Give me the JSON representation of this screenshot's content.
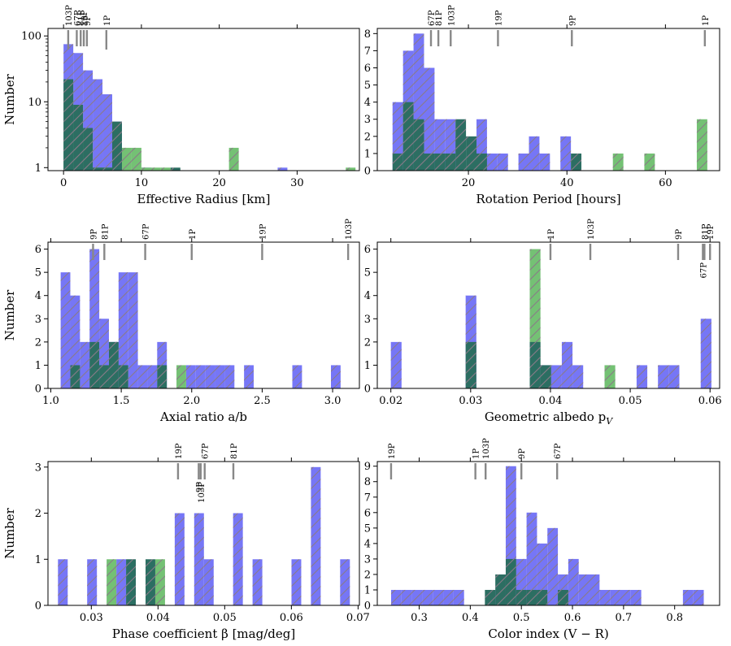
{
  "colors": {
    "blue": "#7676f6",
    "green": "#74c174",
    "dark": "#2c6e62",
    "hatch": "#8a7a88",
    "marker": "#888888"
  },
  "chart_data": [
    {
      "type": "bar",
      "title": "",
      "xlabel": "Effective Radius [km]",
      "ylabel": "Number",
      "yscale": "log",
      "xlim": [
        -2,
        38
      ],
      "ylim": [
        0.9,
        130
      ],
      "xticks": [
        {
          "v": 0,
          "label": "0"
        },
        {
          "v": 10,
          "label": "10"
        },
        {
          "v": 20,
          "label": "20"
        },
        {
          "v": 30,
          "label": "30"
        }
      ],
      "yticks": [
        {
          "v": 1,
          "label": "1"
        },
        {
          "v": 10,
          "label": "10"
        },
        {
          "v": 100,
          "label": "100"
        }
      ],
      "bins_start": 0,
      "bin_width": 1.25,
      "series": [
        {
          "name": "blue",
          "values": [
            75,
            55,
            30,
            22,
            13,
            5,
            0,
            0,
            1,
            0,
            0,
            0,
            0,
            0,
            0,
            0,
            0,
            0,
            0,
            0,
            0,
            0,
            1,
            0,
            0,
            0,
            0,
            0,
            0,
            0
          ]
        },
        {
          "name": "green",
          "values": [
            15,
            5,
            4,
            1,
            1,
            2,
            2,
            2,
            1,
            1,
            1,
            0,
            0,
            0,
            0,
            0,
            0,
            2,
            0,
            0,
            0,
            0,
            0,
            0,
            0,
            0,
            0,
            0,
            0,
            1
          ]
        },
        {
          "name": "overlap",
          "values": [
            22,
            9,
            4,
            1,
            1,
            5,
            0,
            0,
            0,
            0,
            0,
            1,
            0,
            0,
            0,
            0,
            0,
            0,
            0,
            0,
            0,
            0,
            0,
            0,
            0,
            0,
            0,
            0,
            0,
            0
          ]
        }
      ],
      "markers": [
        {
          "label": "103P",
          "x": 0.6,
          "tall": true
        },
        {
          "label": "67P",
          "x": 1.7
        },
        {
          "label": "81P",
          "x": 2.2
        },
        {
          "label": "19P",
          "x": 2.6
        },
        {
          "label": "9P",
          "x": 3.0
        },
        {
          "label": "1P",
          "x": 5.5,
          "tall": true
        }
      ]
    },
    {
      "type": "bar",
      "title": "",
      "xlabel": "Rotation Period [hours]",
      "ylabel": "",
      "yscale": "linear",
      "xlim": [
        1.5,
        71
      ],
      "ylim": [
        0,
        8.3
      ],
      "xticks": [
        {
          "v": 20,
          "label": "20"
        },
        {
          "v": 40,
          "label": "40"
        },
        {
          "v": 60,
          "label": "60"
        }
      ],
      "yticks": [
        {
          "v": 0,
          "label": "0"
        },
        {
          "v": 1,
          "label": "1"
        },
        {
          "v": 2,
          "label": "2"
        },
        {
          "v": 3,
          "label": "3"
        },
        {
          "v": 4,
          "label": "4"
        },
        {
          "v": 5,
          "label": "5"
        },
        {
          "v": 6,
          "label": "6"
        },
        {
          "v": 7,
          "label": "7"
        },
        {
          "v": 8,
          "label": "8"
        }
      ],
      "bins_start": 4.6,
      "bin_width": 2.13,
      "series": [
        {
          "name": "blue",
          "values": [
            4,
            7,
            8,
            6,
            3,
            3,
            2,
            0,
            3,
            1,
            1,
            0,
            1,
            2,
            1,
            0,
            2,
            0,
            0,
            0,
            0,
            0,
            0,
            0,
            0,
            0,
            0,
            0,
            0,
            0
          ]
        },
        {
          "name": "green",
          "values": [
            0,
            0,
            0,
            0,
            0,
            0,
            0,
            0,
            0,
            0,
            0,
            0,
            0,
            0,
            0,
            0,
            0,
            0,
            0,
            0,
            0,
            1,
            0,
            0,
            1,
            0,
            0,
            0,
            0,
            3
          ]
        },
        {
          "name": "overlap",
          "values": [
            1,
            4,
            3,
            1,
            1,
            1,
            3,
            2,
            1,
            0,
            0,
            0,
            0,
            0,
            0,
            0,
            0,
            1,
            0,
            0,
            0,
            0,
            0,
            0,
            0,
            0,
            0,
            0,
            0,
            0
          ]
        }
      ],
      "markers": [
        {
          "label": "67P",
          "x": 12.4
        },
        {
          "label": "81P",
          "x": 13.9
        },
        {
          "label": "103P",
          "x": 16.4
        },
        {
          "label": "19P",
          "x": 26.0
        },
        {
          "label": "9P",
          "x": 41.0
        },
        {
          "label": "1P",
          "x": 68.0
        }
      ]
    },
    {
      "type": "bar",
      "title": "",
      "xlabel": "Axial ratio a/b",
      "ylabel": "Number",
      "yscale": "linear",
      "xlim": [
        0.98,
        3.19
      ],
      "ylim": [
        0,
        6.3
      ],
      "xticks": [
        {
          "v": 1.0,
          "label": "1.0"
        },
        {
          "v": 1.5,
          "label": "1.5"
        },
        {
          "v": 2.0,
          "label": "2.0"
        },
        {
          "v": 2.5,
          "label": "2.5"
        },
        {
          "v": 3.0,
          "label": "3.0"
        }
      ],
      "yticks": [
        {
          "v": 0,
          "label": "0"
        },
        {
          "v": 1,
          "label": "1"
        },
        {
          "v": 2,
          "label": "2"
        },
        {
          "v": 3,
          "label": "3"
        },
        {
          "v": 4,
          "label": "4"
        },
        {
          "v": 5,
          "label": "5"
        },
        {
          "v": 6,
          "label": "6"
        }
      ],
      "bins_start": 1.07,
      "bin_width": 0.0685,
      "series": [
        {
          "name": "blue",
          "values": [
            5,
            4,
            2,
            6,
            3,
            2,
            5,
            5,
            1,
            1,
            2,
            0,
            0,
            1,
            1,
            1,
            1,
            1,
            0,
            1,
            0,
            0,
            0,
            0,
            1,
            0,
            0,
            0,
            1,
            0
          ]
        },
        {
          "name": "green",
          "values": [
            0,
            0,
            0,
            0,
            0,
            0,
            0,
            0,
            0,
            0,
            0,
            0,
            1,
            0,
            0,
            0,
            0,
            0,
            0,
            0,
            0,
            0,
            0,
            0,
            0,
            0,
            0,
            0,
            0,
            0
          ]
        },
        {
          "name": "overlap",
          "values": [
            0,
            1,
            0,
            2,
            1,
            2,
            1,
            0,
            0,
            0,
            1,
            0,
            0,
            0,
            0,
            0,
            0,
            0,
            0,
            0,
            0,
            0,
            0,
            0,
            0,
            0,
            0,
            0,
            0,
            0
          ]
        }
      ],
      "markers": [
        {
          "label": "9P",
          "x": 1.3
        },
        {
          "label": "81P",
          "x": 1.38
        },
        {
          "label": "67P",
          "x": 1.67
        },
        {
          "label": "1P",
          "x": 2.0
        },
        {
          "label": "19P",
          "x": 2.5
        },
        {
          "label": "103P",
          "x": 3.11
        }
      ]
    },
    {
      "type": "bar",
      "title": "",
      "xlabel": "Geometric albedo p",
      "xlabel_sub": "V",
      "ylabel": "",
      "yscale": "linear",
      "xlim": [
        0.0183,
        0.0612
      ],
      "ylim": [
        0,
        6.3
      ],
      "xticks": [
        {
          "v": 0.02,
          "label": "0.02"
        },
        {
          "v": 0.03,
          "label": "0.03"
        },
        {
          "v": 0.04,
          "label": "0.04"
        },
        {
          "v": 0.05,
          "label": "0.05"
        },
        {
          "v": 0.06,
          "label": "0.06"
        }
      ],
      "yticks": [
        {
          "v": 0,
          "label": "0"
        },
        {
          "v": 1,
          "label": "1"
        },
        {
          "v": 2,
          "label": "2"
        },
        {
          "v": 3,
          "label": "3"
        },
        {
          "v": 4,
          "label": "4"
        },
        {
          "v": 5,
          "label": "5"
        },
        {
          "v": 6,
          "label": "6"
        }
      ],
      "bins_start": 0.02,
      "bin_width": 0.001339,
      "series": [
        {
          "name": "blue",
          "values": [
            2,
            0,
            0,
            0,
            0,
            0,
            0,
            4,
            0,
            0,
            0,
            0,
            0,
            0,
            1,
            1,
            2,
            1,
            0,
            0,
            0,
            0,
            0,
            1,
            0,
            1,
            1,
            0,
            0,
            3
          ]
        },
        {
          "name": "green",
          "values": [
            0,
            0,
            0,
            0,
            0,
            0,
            0,
            0,
            0,
            0,
            0,
            0,
            0,
            6,
            0,
            0,
            0,
            0,
            0,
            0,
            1,
            0,
            0,
            0,
            0,
            0,
            0,
            0,
            0,
            0
          ]
        },
        {
          "name": "overlap",
          "values": [
            0,
            0,
            0,
            0,
            0,
            0,
            0,
            2,
            0,
            0,
            0,
            0,
            0,
            2,
            1,
            0,
            0,
            0,
            0,
            0,
            0,
            0,
            0,
            0,
            0,
            0,
            0,
            0,
            0,
            0
          ]
        }
      ],
      "markers": [
        {
          "label": "1P",
          "x": 0.04
        },
        {
          "label": "103P",
          "x": 0.045
        },
        {
          "label": "9P",
          "x": 0.056
        },
        {
          "label": "67P",
          "x": 0.0591,
          "below": true
        },
        {
          "label": "81P",
          "x": 0.0593
        },
        {
          "label": "19P",
          "x": 0.06
        }
      ]
    },
    {
      "type": "bar",
      "title": "",
      "xlabel": "Phase coefficient β [mag/deg]",
      "ylabel": "Number",
      "yscale": "linear",
      "xlim": [
        0.0235,
        0.0702
      ],
      "ylim": [
        0,
        3.12
      ],
      "xticks": [
        {
          "v": 0.03,
          "label": "0.03"
        },
        {
          "v": 0.04,
          "label": "0.04"
        },
        {
          "v": 0.05,
          "label": "0.05"
        },
        {
          "v": 0.06,
          "label": "0.06"
        },
        {
          "v": 0.07,
          "label": "0.07"
        }
      ],
      "yticks": [
        {
          "v": 0,
          "label": "0"
        },
        {
          "v": 1,
          "label": "1"
        },
        {
          "v": 2,
          "label": "2"
        },
        {
          "v": 3,
          "label": "3"
        }
      ],
      "bins_start": 0.025,
      "bin_width": 0.001459,
      "series": [
        {
          "name": "blue",
          "values": [
            1,
            0,
            0,
            1,
            0,
            0,
            1,
            0,
            0,
            0,
            0,
            0,
            2,
            0,
            2,
            1,
            0,
            0,
            2,
            0,
            1,
            0,
            0,
            0,
            1,
            0,
            3,
            0,
            0,
            1
          ]
        },
        {
          "name": "green",
          "values": [
            0,
            0,
            0,
            0,
            0,
            1,
            0,
            0,
            0,
            0,
            1,
            0,
            0,
            0,
            0,
            0,
            0,
            0,
            0,
            0,
            0,
            0,
            0,
            0,
            0,
            0,
            0,
            0,
            0,
            0
          ]
        },
        {
          "name": "overlap",
          "values": [
            0,
            0,
            0,
            0,
            0,
            0,
            0,
            1,
            0,
            1,
            0,
            0,
            0,
            0,
            0,
            0,
            0,
            0,
            0,
            0,
            0,
            0,
            0,
            0,
            0,
            0,
            0,
            0,
            0,
            0
          ]
        }
      ],
      "markers": [
        {
          "label": "19P",
          "x": 0.043
        },
        {
          "label": "9P",
          "x": 0.0461,
          "below": true
        },
        {
          "label": "103P",
          "x": 0.0464,
          "below": true
        },
        {
          "label": "67P",
          "x": 0.047
        },
        {
          "label": "81P",
          "x": 0.0513
        }
      ]
    },
    {
      "type": "bar",
      "title": "",
      "xlabel": "Color index (V − R)",
      "ylabel": "",
      "yscale": "linear",
      "xlim": [
        0.218,
        0.888
      ],
      "ylim": [
        0,
        9.3
      ],
      "xticks": [
        {
          "v": 0.3,
          "label": "0.3"
        },
        {
          "v": 0.4,
          "label": "0.4"
        },
        {
          "v": 0.5,
          "label": "0.5"
        },
        {
          "v": 0.6,
          "label": "0.6"
        },
        {
          "v": 0.7,
          "label": "0.7"
        },
        {
          "v": 0.8,
          "label": "0.8"
        }
      ],
      "yticks": [
        {
          "v": 0,
          "label": "0"
        },
        {
          "v": 1,
          "label": "1"
        },
        {
          "v": 2,
          "label": "2"
        },
        {
          "v": 3,
          "label": "3"
        },
        {
          "v": 4,
          "label": "4"
        },
        {
          "v": 5,
          "label": "5"
        },
        {
          "v": 6,
          "label": "6"
        },
        {
          "v": 7,
          "label": "7"
        },
        {
          "v": 8,
          "label": "8"
        },
        {
          "v": 9,
          "label": "9"
        }
      ],
      "bins_start": 0.245,
      "bin_width": 0.0204,
      "series": [
        {
          "name": "blue",
          "values": [
            1,
            1,
            1,
            1,
            1,
            1,
            1,
            0,
            0,
            0,
            1,
            9,
            3,
            6,
            4,
            5,
            2,
            3,
            2,
            2,
            1,
            1,
            1,
            1,
            0,
            0,
            0,
            0,
            1,
            1
          ]
        },
        {
          "name": "green",
          "values": [
            0,
            0,
            0,
            0,
            0,
            0,
            0,
            0,
            0,
            0,
            0,
            0,
            0,
            0,
            0,
            0,
            0,
            0,
            0,
            0,
            0,
            0,
            0,
            0,
            0,
            0,
            0,
            0,
            0,
            0
          ]
        },
        {
          "name": "overlap",
          "values": [
            0,
            0,
            0,
            0,
            0,
            0,
            0,
            0,
            0,
            1,
            2,
            3,
            1,
            1,
            1,
            0,
            1,
            0,
            0,
            0,
            0,
            0,
            0,
            0,
            0,
            0,
            0,
            0,
            0,
            0
          ]
        }
      ],
      "markers": [
        {
          "label": "19P",
          "x": 0.245
        },
        {
          "label": "1P",
          "x": 0.41
        },
        {
          "label": "103P",
          "x": 0.43
        },
        {
          "label": "9P",
          "x": 0.5
        },
        {
          "label": "67P",
          "x": 0.57
        }
      ]
    }
  ]
}
